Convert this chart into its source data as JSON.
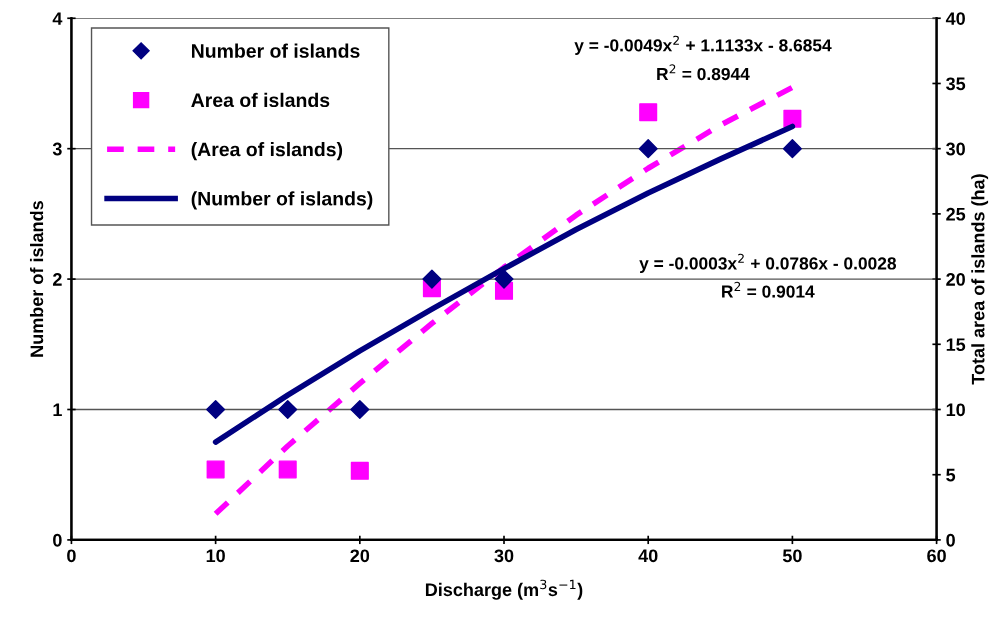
{
  "chart_data": {
    "type": "scatter",
    "xlabel": "Discharge (m$^{3}$s$^{−1}$)",
    "ylabel": "Number of islands",
    "y2label": "Total area of islands (ha)",
    "xlim": [
      0,
      60
    ],
    "xticks": [
      0,
      10,
      20,
      30,
      40,
      50,
      60
    ],
    "ylim": [
      0,
      4
    ],
    "yticks": [
      0,
      1,
      2,
      3,
      4
    ],
    "y2lim": [
      0,
      40
    ],
    "y2ticks": [
      0,
      5,
      10,
      15,
      20,
      25,
      30,
      35,
      40
    ],
    "grid": "y",
    "legend": "top left",
    "series": [
      {
        "name": "Number of islands",
        "marker": "diamond",
        "color": "#000080",
        "x": [
          10,
          15,
          20,
          25,
          30,
          40,
          50
        ],
        "values": [
          1,
          1,
          1,
          2,
          2,
          3,
          3
        ]
      },
      {
        "name": "Area of islands",
        "marker": "square",
        "color": "#ff00ff",
        "axis": "y2",
        "x": [
          10,
          15,
          20,
          25,
          30,
          40,
          50
        ],
        "values": [
          5.4,
          5.4,
          5.3,
          19.3,
          19.1,
          32.8,
          32.3
        ]
      },
      {
        "name": "(Area of islands)",
        "type": "line",
        "line_style": "dashed",
        "marker": "none",
        "color": "#ff00ff",
        "axis": "y2",
        "x": [
          10,
          15,
          20,
          25,
          30,
          35,
          40,
          45,
          50
        ],
        "values": [
          2.0,
          7.2,
          12.0,
          16.6,
          20.9,
          24.9,
          28.5,
          31.8,
          34.7
        ]
      },
      {
        "name": "(Number of islands)",
        "type": "line",
        "line_style": "solid",
        "marker": "none",
        "color": "#000080",
        "x": [
          10,
          15,
          20,
          25,
          30,
          35,
          40,
          45,
          50
        ],
        "values": [
          0.75,
          1.11,
          1.45,
          1.77,
          2.08,
          2.38,
          2.66,
          2.92,
          3.17
        ]
      }
    ],
    "annotations": [
      "y = -0.0049x$^{2}$ + 1.1133x - 8.6854",
      "R$^{2}$ = 0.8944",
      "y = -0.0003x$^{2}$ + 0.0786x - 0.0028",
      "R$^{2}$ = 0.9014"
    ]
  }
}
